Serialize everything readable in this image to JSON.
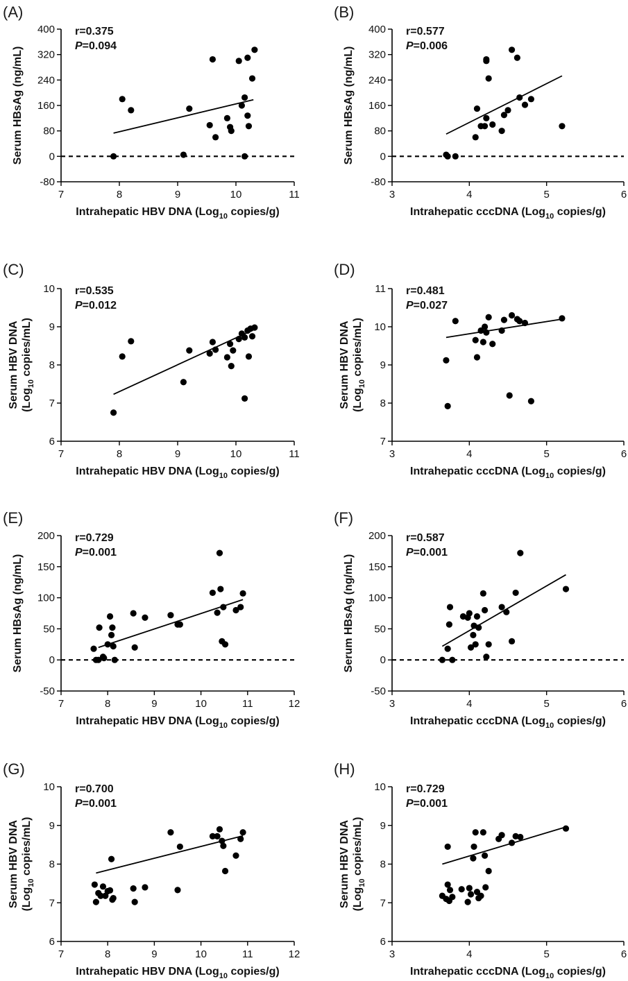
{
  "chart_data": [
    {
      "type": "scatter",
      "panel_label": "(A)",
      "xlabel": {
        "main": "Intrahepatic HBV DNA (Log",
        "sub": "10",
        "tail": " copies/g)"
      },
      "ylabel": {
        "line1": "Serum HBsAg (ng/mL)"
      },
      "xlim": [
        7,
        11
      ],
      "xticks": [
        7,
        8,
        9,
        10,
        11
      ],
      "ylim": [
        -80,
        400
      ],
      "yticks": [
        -80,
        0,
        80,
        160,
        240,
        320,
        400
      ],
      "zero_line": true,
      "r_text": "r=0.375",
      "p_symbol": "P",
      "p_text": "=0.094",
      "trend": {
        "x": [
          7.9,
          10.3
        ],
        "y": [
          73,
          178
        ]
      },
      "points": [
        [
          7.9,
          0
        ],
        [
          8.05,
          180
        ],
        [
          8.2,
          145
        ],
        [
          9.1,
          5
        ],
        [
          9.2,
          150
        ],
        [
          9.55,
          98
        ],
        [
          9.6,
          305
        ],
        [
          9.65,
          60
        ],
        [
          9.85,
          120
        ],
        [
          9.9,
          92
        ],
        [
          9.92,
          80
        ],
        [
          10.05,
          300
        ],
        [
          10.1,
          160
        ],
        [
          10.15,
          185
        ],
        [
          10.15,
          0
        ],
        [
          10.2,
          310
        ],
        [
          10.2,
          128
        ],
        [
          10.22,
          95
        ],
        [
          10.28,
          245
        ],
        [
          10.32,
          335
        ]
      ]
    },
    {
      "type": "scatter",
      "panel_label": "(B)",
      "xlabel": {
        "main": "Intrahepatic cccDNA (Log",
        "sub": "10",
        "tail": " copies/g)"
      },
      "ylabel": {
        "line1": "Serum HBsAg (ng/mL)"
      },
      "xlim": [
        3,
        6
      ],
      "xticks": [
        3,
        4,
        5,
        6
      ],
      "ylim": [
        -80,
        400
      ],
      "yticks": [
        -80,
        0,
        80,
        160,
        240,
        320,
        400
      ],
      "zero_line": true,
      "r_text": "r=0.577",
      "p_symbol": "P",
      "p_text": "=0.006",
      "trend": {
        "x": [
          3.7,
          5.2
        ],
        "y": [
          70,
          253
        ]
      },
      "points": [
        [
          3.7,
          5
        ],
        [
          3.72,
          0
        ],
        [
          3.82,
          0
        ],
        [
          4.08,
          60
        ],
        [
          4.1,
          150
        ],
        [
          4.15,
          95
        ],
        [
          4.2,
          95
        ],
        [
          4.22,
          305
        ],
        [
          4.22,
          300
        ],
        [
          4.22,
          120
        ],
        [
          4.25,
          245
        ],
        [
          4.3,
          100
        ],
        [
          4.42,
          80
        ],
        [
          4.45,
          130
        ],
        [
          4.5,
          145
        ],
        [
          4.55,
          335
        ],
        [
          4.62,
          310
        ],
        [
          4.65,
          185
        ],
        [
          4.72,
          162
        ],
        [
          4.8,
          180
        ],
        [
          5.2,
          95
        ]
      ]
    },
    {
      "type": "scatter",
      "panel_label": "(C)",
      "xlabel": {
        "main": "Intrahepatic HBV DNA (Log",
        "sub": "10",
        "tail": " copies/g)"
      },
      "ylabel": {
        "line1": "Serum HBV DNA",
        "line2_main": "(Log",
        "line2_sub": "10",
        "line2_tail": " copies/mL)"
      },
      "xlim": [
        7,
        11
      ],
      "xticks": [
        7,
        8,
        9,
        10,
        11
      ],
      "ylim": [
        6,
        10
      ],
      "yticks": [
        6,
        7,
        8,
        9,
        10
      ],
      "zero_line": false,
      "r_text": "r=0.535",
      "p_symbol": "P",
      "p_text": "=0.012",
      "trend": {
        "x": [
          7.9,
          10.3
        ],
        "y": [
          7.23,
          8.92
        ]
      },
      "points": [
        [
          7.9,
          6.75
        ],
        [
          8.05,
          8.22
        ],
        [
          8.2,
          8.62
        ],
        [
          9.1,
          7.55
        ],
        [
          9.2,
          8.38
        ],
        [
          9.55,
          8.3
        ],
        [
          9.6,
          8.6
        ],
        [
          9.65,
          8.4
        ],
        [
          9.85,
          8.2
        ],
        [
          9.9,
          8.55
        ],
        [
          9.92,
          7.97
        ],
        [
          9.95,
          8.38
        ],
        [
          10.05,
          8.68
        ],
        [
          10.1,
          8.82
        ],
        [
          10.15,
          7.12
        ],
        [
          10.15,
          8.72
        ],
        [
          10.2,
          8.9
        ],
        [
          10.22,
          8.22
        ],
        [
          10.25,
          8.95
        ],
        [
          10.28,
          8.75
        ],
        [
          10.32,
          8.98
        ]
      ]
    },
    {
      "type": "scatter",
      "panel_label": "(D)",
      "xlabel": {
        "main": "Intrahepatic cccDNA (Log",
        "sub": "10",
        "tail": " copies/g)"
      },
      "ylabel": {
        "line1": "Serum HBV DNA",
        "line2_main": "(Log",
        "line2_sub": "10",
        "line2_tail": " copies/mL)"
      },
      "xlim": [
        3,
        6
      ],
      "xticks": [
        3,
        4,
        5,
        6
      ],
      "ylim": [
        7,
        11
      ],
      "yticks": [
        7,
        8,
        9,
        10,
        11
      ],
      "zero_line": false,
      "r_text": "r=0.481",
      "p_symbol": "P",
      "p_text": "=0.027",
      "trend": {
        "x": [
          3.7,
          5.2
        ],
        "y": [
          9.72,
          10.2
        ]
      },
      "points": [
        [
          3.7,
          9.12
        ],
        [
          3.72,
          7.92
        ],
        [
          3.82,
          10.15
        ],
        [
          4.08,
          9.65
        ],
        [
          4.1,
          9.2
        ],
        [
          4.15,
          9.9
        ],
        [
          4.18,
          9.6
        ],
        [
          4.2,
          10.0
        ],
        [
          4.22,
          9.85
        ],
        [
          4.25,
          10.25
        ],
        [
          4.3,
          9.55
        ],
        [
          4.42,
          9.9
        ],
        [
          4.45,
          10.18
        ],
        [
          4.52,
          8.2
        ],
        [
          4.55,
          10.3
        ],
        [
          4.62,
          10.2
        ],
        [
          4.65,
          10.15
        ],
        [
          4.72,
          10.1
        ],
        [
          4.8,
          8.05
        ],
        [
          5.2,
          10.22
        ]
      ]
    },
    {
      "type": "scatter",
      "panel_label": "(E)",
      "xlabel": {
        "main": "Intrahepatic HBV DNA (Log",
        "sub": "10",
        "tail": " copies/g)"
      },
      "ylabel": {
        "line1": "Serum HBsAg (ng/mL)"
      },
      "xlim": [
        7,
        12
      ],
      "xticks": [
        7,
        8,
        9,
        10,
        11,
        12
      ],
      "ylim": [
        -50,
        200
      ],
      "yticks": [
        -50,
        0,
        50,
        100,
        150,
        200
      ],
      "zero_line": true,
      "r_text": "r=0.729",
      "p_symbol": "P",
      "p_text": "=0.001",
      "trend": {
        "x": [
          7.8,
          10.9
        ],
        "y": [
          20,
          97
        ]
      },
      "points": [
        [
          7.7,
          18
        ],
        [
          7.75,
          0
        ],
        [
          7.8,
          0
        ],
        [
          7.82,
          52
        ],
        [
          7.9,
          5
        ],
        [
          7.92,
          3
        ],
        [
          8.0,
          25
        ],
        [
          8.05,
          70
        ],
        [
          8.08,
          40
        ],
        [
          8.1,
          52
        ],
        [
          8.12,
          22
        ],
        [
          8.15,
          0
        ],
        [
          8.55,
          75
        ],
        [
          8.58,
          20
        ],
        [
          8.8,
          68
        ],
        [
          9.35,
          72
        ],
        [
          9.5,
          57
        ],
        [
          9.55,
          57
        ],
        [
          10.25,
          108
        ],
        [
          10.35,
          76
        ],
        [
          10.4,
          172
        ],
        [
          10.42,
          114
        ],
        [
          10.45,
          30
        ],
        [
          10.48,
          85
        ],
        [
          10.52,
          25
        ],
        [
          10.75,
          80
        ],
        [
          10.85,
          85
        ],
        [
          10.9,
          107
        ]
      ]
    },
    {
      "type": "scatter",
      "panel_label": "(F)",
      "xlabel": {
        "main": "Intrahepatic cccDNA (Log",
        "sub": "10",
        "tail": " copies/g)"
      },
      "ylabel": {
        "line1": "Serum HBsAg (ng/mL)"
      },
      "xlim": [
        3,
        6
      ],
      "xticks": [
        3,
        4,
        5,
        6
      ],
      "ylim": [
        -50,
        200
      ],
      "yticks": [
        -50,
        0,
        50,
        100,
        150,
        200
      ],
      "zero_line": true,
      "r_text": "r=0.587",
      "p_symbol": "P",
      "p_text": "=0.001",
      "trend": {
        "x": [
          3.65,
          5.25
        ],
        "y": [
          22,
          137
        ]
      },
      "points": [
        [
          3.65,
          0
        ],
        [
          3.72,
          18
        ],
        [
          3.74,
          57
        ],
        [
          3.75,
          85
        ],
        [
          3.78,
          0
        ],
        [
          3.92,
          70
        ],
        [
          3.98,
          68
        ],
        [
          4.0,
          75
        ],
        [
          4.02,
          20
        ],
        [
          4.05,
          40
        ],
        [
          4.06,
          55
        ],
        [
          4.08,
          25
        ],
        [
          4.1,
          70
        ],
        [
          4.12,
          52
        ],
        [
          4.18,
          107
        ],
        [
          4.2,
          80
        ],
        [
          4.22,
          5
        ],
        [
          4.25,
          25
        ],
        [
          4.42,
          85
        ],
        [
          4.48,
          77
        ],
        [
          4.55,
          30
        ],
        [
          4.6,
          108
        ],
        [
          4.66,
          172
        ],
        [
          5.25,
          114
        ]
      ]
    },
    {
      "type": "scatter",
      "panel_label": "(G)",
      "xlabel": {
        "main": "Intrahepatic HBV DNA (Log",
        "sub": "10",
        "tail": " copies/g)"
      },
      "ylabel": {
        "line1": "Serum HBV DNA",
        "line2_main": "(Log",
        "line2_sub": "10",
        "line2_tail": " copies/mL)"
      },
      "xlim": [
        7,
        12
      ],
      "xticks": [
        7,
        8,
        9,
        10,
        11,
        12
      ],
      "ylim": [
        6,
        10
      ],
      "yticks": [
        6,
        7,
        8,
        9,
        10
      ],
      "zero_line": false,
      "r_text": "r=0.700",
      "p_symbol": "P",
      "p_text": "=0.001",
      "trend": {
        "x": [
          7.75,
          10.9
        ],
        "y": [
          7.77,
          8.73
        ]
      },
      "points": [
        [
          7.72,
          7.47
        ],
        [
          7.75,
          7.02
        ],
        [
          7.8,
          7.25
        ],
        [
          7.85,
          7.18
        ],
        [
          7.9,
          7.42
        ],
        [
          7.95,
          7.18
        ],
        [
          8.0,
          7.3
        ],
        [
          8.05,
          7.32
        ],
        [
          8.08,
          8.13
        ],
        [
          8.1,
          7.08
        ],
        [
          8.12,
          7.12
        ],
        [
          8.55,
          7.37
        ],
        [
          8.58,
          7.02
        ],
        [
          8.8,
          7.4
        ],
        [
          9.35,
          8.82
        ],
        [
          9.5,
          7.33
        ],
        [
          9.55,
          8.45
        ],
        [
          10.25,
          8.72
        ],
        [
          10.35,
          8.72
        ],
        [
          10.4,
          8.9
        ],
        [
          10.45,
          8.6
        ],
        [
          10.48,
          8.47
        ],
        [
          10.52,
          7.82
        ],
        [
          10.75,
          8.22
        ],
        [
          10.85,
          8.65
        ],
        [
          10.9,
          8.82
        ]
      ]
    },
    {
      "type": "scatter",
      "panel_label": "(H)",
      "xlabel": {
        "main": "Intrahepatic cccDNA (Log",
        "sub": "10",
        "tail": " copies/g)"
      },
      "ylabel": {
        "line1": "Serum HBV DNA",
        "line2_main": "(Log",
        "line2_sub": "10",
        "line2_tail": " copies/mL)"
      },
      "xlim": [
        3,
        6
      ],
      "xticks": [
        3,
        4,
        5,
        6
      ],
      "ylim": [
        6,
        10
      ],
      "yticks": [
        6,
        7,
        8,
        9,
        10
      ],
      "zero_line": false,
      "r_text": "r=0.729",
      "p_symbol": "P",
      "p_text": "=0.001",
      "trend": {
        "x": [
          3.65,
          5.25
        ],
        "y": [
          8.0,
          8.96
        ]
      },
      "points": [
        [
          3.65,
          7.18
        ],
        [
          3.7,
          7.1
        ],
        [
          3.72,
          8.45
        ],
        [
          3.72,
          7.47
        ],
        [
          3.74,
          7.05
        ],
        [
          3.75,
          7.33
        ],
        [
          3.78,
          7.15
        ],
        [
          3.9,
          7.35
        ],
        [
          3.98,
          7.02
        ],
        [
          4.0,
          7.38
        ],
        [
          4.02,
          7.22
        ],
        [
          4.05,
          8.15
        ],
        [
          4.06,
          8.45
        ],
        [
          4.08,
          8.82
        ],
        [
          4.1,
          7.28
        ],
        [
          4.12,
          7.12
        ],
        [
          4.15,
          7.18
        ],
        [
          4.18,
          8.82
        ],
        [
          4.2,
          8.22
        ],
        [
          4.21,
          7.4
        ],
        [
          4.25,
          7.82
        ],
        [
          4.38,
          8.65
        ],
        [
          4.42,
          8.75
        ],
        [
          4.55,
          8.55
        ],
        [
          4.6,
          8.72
        ],
        [
          4.66,
          8.7
        ],
        [
          5.25,
          8.92
        ]
      ]
    }
  ]
}
